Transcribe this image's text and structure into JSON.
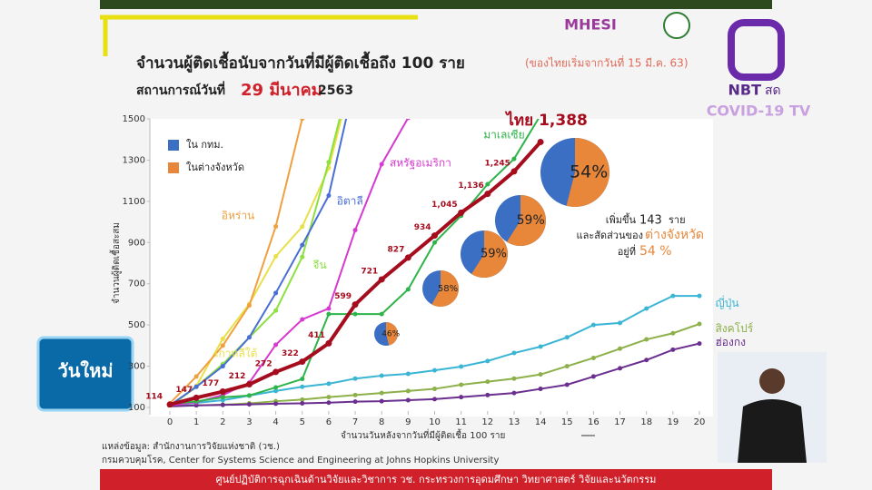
{
  "header": {
    "logo_text": "MHESI",
    "channel": "NBT",
    "live": "สด",
    "program": "COVID-19 TV",
    "corner_logo": "วันใหม่"
  },
  "chart_data": {
    "type": "line",
    "title": "จำนวนผู้ติดเชื้อนับจากวันที่มีผู้ติดเชื้อถึง 100 ราย",
    "title_note": "(ของไทยเริ่มจากวันที่ 15 มี.ค. 63)",
    "subtitle_prefix": "สถานการณ์วันที่",
    "subtitle_date": "29 มีนาคม",
    "subtitle_year": "2563",
    "x_label": "จำนวนวันหลังจากวันที่มีผู้ติดเชื้อ 100 ราย",
    "y_label": "จำนวนผู้ติดเชื้อสะสม",
    "x": [
      0,
      1,
      2,
      3,
      4,
      5,
      6,
      7,
      8,
      9,
      10,
      11,
      12,
      13,
      14,
      15,
      16,
      17,
      18,
      19,
      20
    ],
    "xlim": [
      0,
      20
    ],
    "xticks": [
      0,
      1,
      2,
      3,
      4,
      5,
      6,
      7,
      8,
      9,
      10,
      11,
      12,
      13,
      14,
      15,
      16,
      17,
      18,
      19,
      20
    ],
    "ylim": [
      100,
      1500
    ],
    "yticks": [
      100,
      300,
      500,
      700,
      900,
      1100,
      1300,
      1500
    ],
    "grid": false,
    "series": [
      {
        "name": "ญี่ปุ่น",
        "color": "#3ab5d4",
        "values": [
          109,
          122,
          135,
          157,
          180,
          200,
          215,
          240,
          254,
          263,
          280,
          298,
          325,
          364,
          395,
          440,
          500,
          510,
          580,
          641,
          641
        ]
      },
      {
        "name": "สิงคโปร์",
        "color": "#8db04a",
        "values": [
          108,
          110,
          113,
          120,
          130,
          138,
          150,
          160,
          170,
          180,
          190,
          210,
          225,
          240,
          260,
          300,
          340,
          385,
          430,
          460,
          505
        ]
      },
      {
        "name": "ฮ่องกง",
        "color": "#6a2f8f",
        "values": [
          105,
          110,
          112,
          115,
          118,
          120,
          123,
          128,
          130,
          135,
          140,
          150,
          160,
          170,
          190,
          210,
          250,
          290,
          330,
          380,
          410
        ]
      },
      {
        "name": "เกาหลีใต้",
        "color": "#e8e048",
        "values": [
          104,
          204,
          433,
          602,
          833,
          977,
          1261,
          1766,
          null,
          null,
          null,
          null,
          null,
          null,
          null,
          null,
          null,
          null,
          null,
          null,
          null
        ]
      },
      {
        "name": "อิหร่าน",
        "color": "#f0a040",
        "values": [
          120,
          250,
          400,
          595,
          978,
          1501,
          null,
          null,
          null,
          null,
          null,
          null,
          null,
          null,
          null,
          null,
          null,
          null,
          null,
          null,
          null
        ]
      },
      {
        "name": "จีน",
        "color": "#8ce040",
        "values": [
          105,
          200,
          310,
          440,
          570,
          830,
          1290,
          1800,
          null,
          null,
          null,
          null,
          null,
          null,
          null,
          null,
          null,
          null,
          null,
          null,
          null
        ]
      },
      {
        "name": "อิตาลี",
        "color": "#4a6fd4",
        "values": [
          110,
          200,
          300,
          440,
          655,
          888,
          1128,
          1694,
          null,
          null,
          null,
          null,
          null,
          null,
          null,
          null,
          null,
          null,
          null,
          null,
          null
        ]
      },
      {
        "name": "สหรัฐอเมริกา",
        "color": "#d63ad0",
        "values": [
          110,
          125,
          160,
          220,
          404,
          527,
          580,
          960,
          1280,
          1505,
          null,
          null,
          null,
          null,
          null,
          null,
          null,
          null,
          null,
          null,
          null
        ]
      },
      {
        "name": "มาเลเซีย",
        "color": "#2fb44a",
        "values": [
          117,
          129,
          149,
          158,
          197,
          238,
          553,
          553,
          553,
          673,
          900,
          1030,
          1183,
          1306,
          1518,
          null,
          null,
          null,
          null,
          null,
          null
        ]
      },
      {
        "name": "ไทย",
        "color": "#a50d1e",
        "values": [
          114,
          147,
          177,
          212,
          272,
          322,
          411,
          599,
          721,
          827,
          934,
          1045,
          1136,
          1245,
          1388,
          null,
          null,
          null,
          null,
          null,
          null
        ],
        "value_labels": [
          "114",
          "147",
          "177",
          "212",
          "272",
          "322",
          "411",
          "599",
          "721",
          "827",
          "934",
          "1,045",
          "1,136",
          "1,245",
          "1,388",
          null,
          null,
          null,
          null,
          null,
          null
        ]
      }
    ],
    "legend": [
      {
        "name": "ใน กทม.",
        "color": "#3a6fc4"
      },
      {
        "name": "ในต่างจังหวัด",
        "color": "#e8873a"
      }
    ],
    "pies": {
      "values": [
        46,
        58,
        59,
        59,
        54
      ],
      "value_labels": [
        "46%",
        "58%",
        "59%",
        "59%",
        "54%"
      ]
    },
    "annotation": {
      "line1_prefix": "เพิ่มขึ้น",
      "line1_number": "143",
      "line1_suffix": "ราย",
      "line2_prefix": "และสัดส่วนของ",
      "line2_highlight": "ต่างจังหวัด",
      "line3_prefix": "อยู่ที่",
      "line3_value": "54 %"
    },
    "source_1": "แหล่งข้อมูล: สำนักงานการวิจัยแห่งชาติ (วช.)",
    "source_2": "กรมควบคุมโรค, Center for Systems Science and Engineering at Johns Hopkins University"
  },
  "footer": {
    "text": "ศูนย์ปฏิบัติการฉุกเฉินด้านวิจัยและวิชาการ      วช.   กระทรวงการอุดมศึกษา วิทยาศาสตร์ วิจัยและนวัตกรรม"
  }
}
